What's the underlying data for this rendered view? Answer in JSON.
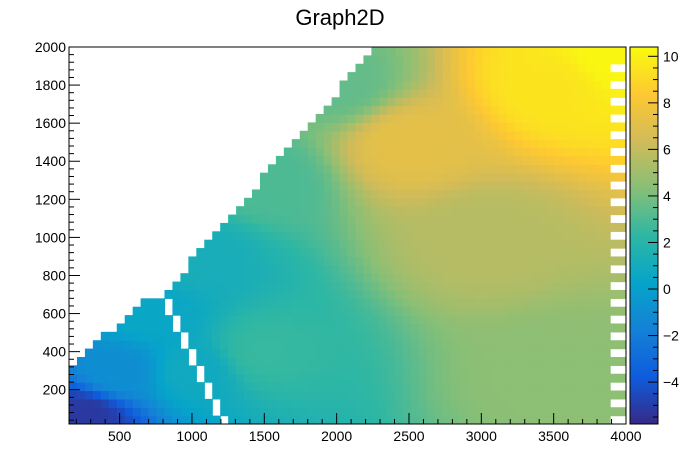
{
  "chart_data": {
    "type": "heatmap",
    "title": "Graph2D",
    "xlabel": "",
    "ylabel": "",
    "xlim": [
      150,
      4000
    ],
    "ylim": [
      20,
      2000
    ],
    "zlim": [
      -5.8,
      10.4
    ],
    "x_ticks": [
      "500",
      "1000",
      "1500",
      "2000",
      "2500",
      "3000",
      "3500",
      "4000"
    ],
    "x_tick_values": [
      500,
      1000,
      1500,
      2000,
      2500,
      3000,
      3500,
      4000
    ],
    "y_ticks": [
      "200",
      "400",
      "600",
      "800",
      "1000",
      "1200",
      "1400",
      "1600",
      "1800",
      "2000"
    ],
    "y_tick_values": [
      200,
      400,
      600,
      800,
      1000,
      1200,
      1400,
      1600,
      1800,
      2000
    ],
    "z_ticks": [
      "−4",
      "−2",
      "0",
      "2",
      "4",
      "6",
      "8",
      "10"
    ],
    "z_tick_values": [
      -4,
      -2,
      0,
      2,
      4,
      6,
      8,
      10
    ],
    "colormap": "parula",
    "colormap_stops": [
      "#352a87",
      "#0f5cdd",
      "#1481d6",
      "#06a4ca",
      "#2eb7a4",
      "#87bf77",
      "#d1bb59",
      "#fec832",
      "#f9fb0e"
    ],
    "grid": false,
    "legend": "color bar, right",
    "surface": {
      "description_free": true,
      "sample_points": [
        {
          "x": 250,
          "y": 60,
          "z": -5.2
        },
        {
          "x": 500,
          "y": 300,
          "z": -1.0
        },
        {
          "x": 700,
          "y": 600,
          "z": 0.5
        },
        {
          "x": 1000,
          "y": 300,
          "z": 0.8
        },
        {
          "x": 1000,
          "y": 900,
          "z": 1.2
        },
        {
          "x": 1500,
          "y": 400,
          "z": 2.5
        },
        {
          "x": 1500,
          "y": 1300,
          "z": 3.0
        },
        {
          "x": 2000,
          "y": 1800,
          "z": 3.5
        },
        {
          "x": 2500,
          "y": 1500,
          "z": 7.2
        },
        {
          "x": 3000,
          "y": 1000,
          "z": 5.6
        },
        {
          "x": 3500,
          "y": 300,
          "z": 4.5
        },
        {
          "x": 3500,
          "y": 1800,
          "z": 9.5
        },
        {
          "x": 3900,
          "y": 1950,
          "z": 10.2
        }
      ]
    }
  }
}
